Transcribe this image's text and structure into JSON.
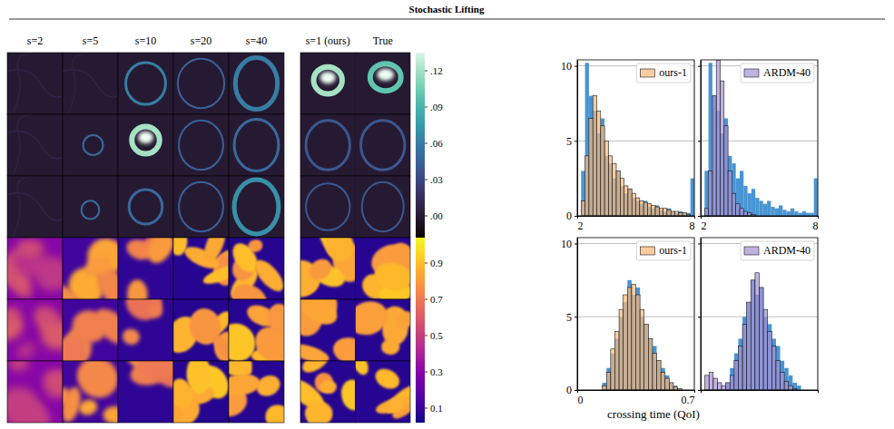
{
  "header": {
    "title": "Stochastic Lifting"
  },
  "image_grid": {
    "column_labels": [
      "s=2",
      "s=5",
      "s=10",
      "s=20",
      "s=40"
    ],
    "compare_labels": [
      "s=1 (ours)",
      "True"
    ],
    "colorbars": [
      {
        "range": [
          -0.018,
          0.135
        ],
        "ticks": [
          {
            "value": 0,
            "label": ".00"
          },
          {
            "value": 0.03,
            "label": ".03"
          },
          {
            "value": 0.06,
            "label": ".06"
          },
          {
            "value": 0.09,
            "label": ".09"
          },
          {
            "value": 0.12,
            "label": ".12"
          }
        ]
      },
      {
        "range": [
          0.02,
          1.04
        ],
        "ticks": [
          0.1,
          0.3,
          0.5,
          0.7,
          0.9
        ]
      }
    ]
  },
  "chart_data": [
    {
      "type": "histogram",
      "bins": [
        2,
        2.2,
        2.4,
        2.6,
        2.8,
        3,
        3.2,
        3.4,
        3.6,
        3.8,
        4,
        4.2,
        4.4,
        4.6,
        4.8,
        5,
        5.2,
        5.4,
        5.6,
        5.8,
        6,
        6.2,
        6.4,
        6.6,
        6.8,
        7,
        7.2,
        7.4,
        7.6,
        7.8,
        8
      ],
      "series": [
        {
          "color": "#3f8fd2",
          "values": [
            0,
            3,
            10.2,
            8,
            7,
            5.5,
            6.5,
            4,
            3.5,
            2.5,
            3,
            2,
            1.5,
            1.8,
            1.2,
            1,
            0.8,
            1,
            0.6,
            0.5,
            0.7,
            0.4,
            0.3,
            0.5,
            0.3,
            0.2,
            0.3,
            0.2,
            0.2,
            2.5
          ]
        },
        {
          "name": "ours-1",
          "color": "#f9b97c",
          "values": [
            0,
            1,
            4,
            6.5,
            8,
            7,
            6,
            5,
            4,
            3.5,
            3,
            2.5,
            2,
            1.8,
            1.5,
            1.2,
            1,
            0.9,
            0.8,
            0.7,
            0.6,
            0.5,
            0.5,
            0.4,
            0.3,
            0.3,
            0.2,
            0.2,
            0.1,
            0
          ]
        }
      ],
      "xlim": [
        2,
        8
      ],
      "ylim": [
        0,
        10.4
      ],
      "xticks": [
        2,
        8
      ],
      "yticks": [
        0,
        5,
        10
      ],
      "grid": true,
      "legend": "upper right"
    },
    {
      "type": "histogram",
      "bins": [
        2,
        2.2,
        2.4,
        2.6,
        2.8,
        3,
        3.2,
        3.4,
        3.6,
        3.8,
        4,
        4.2,
        4.4,
        4.6,
        4.8,
        5,
        5.2,
        5.4,
        5.6,
        5.8,
        6,
        6.2,
        6.4,
        6.6,
        6.8,
        7,
        7.2,
        7.4,
        7.6,
        7.8,
        8
      ],
      "series": [
        {
          "color": "#3f8fd2",
          "values": [
            0,
            3,
            10.2,
            8,
            7,
            5.5,
            6.5,
            4,
            3.5,
            2.5,
            3,
            2,
            1.5,
            1.8,
            1.2,
            1,
            0.8,
            1,
            0.6,
            0.5,
            0.7,
            0.4,
            0.3,
            0.5,
            0.3,
            0.2,
            0.3,
            0.2,
            0.2,
            2.5
          ]
        },
        {
          "name": "ARDM-40",
          "color": "#a893d6",
          "values": [
            0,
            0.5,
            3,
            8,
            10.4,
            9,
            6,
            3,
            1.5,
            0.8,
            0.5,
            0.3,
            0.2,
            0.1,
            0,
            0,
            0,
            0,
            0,
            0,
            0,
            0,
            0,
            0,
            0,
            0,
            0,
            0,
            0,
            0
          ]
        }
      ],
      "xlim": [
        2,
        8
      ],
      "ylim": [
        0,
        10.4
      ],
      "xticks": [
        2,
        8
      ],
      "yticks": [
        0,
        5,
        10
      ],
      "grid": true,
      "legend": "upper right",
      "tick_labels": "x"
    },
    {
      "type": "histogram",
      "bins": [
        0,
        0.025,
        0.05,
        0.075,
        0.1,
        0.125,
        0.15,
        0.175,
        0.2,
        0.225,
        0.25,
        0.275,
        0.3,
        0.325,
        0.35,
        0.375,
        0.4,
        0.425,
        0.45,
        0.475,
        0.5,
        0.525,
        0.55,
        0.575,
        0.6,
        0.625,
        0.65,
        0.675,
        0.7
      ],
      "series": [
        {
          "color": "#3f8fd2",
          "values": [
            0,
            0,
            0,
            0,
            0,
            0,
            0.5,
            1.5,
            2.5,
            3.5,
            5,
            6,
            7.5,
            6.5,
            7,
            5,
            4.5,
            3.5,
            3,
            2,
            1.5,
            1,
            0.5,
            0.3,
            0,
            0,
            0,
            0
          ]
        },
        {
          "name": "ours-1",
          "color": "#f9b97c",
          "values": [
            0,
            0,
            0,
            0,
            0,
            0,
            0.3,
            1.2,
            2.8,
            4,
            5.5,
            6.5,
            7,
            7.2,
            6.5,
            5.5,
            4.5,
            3.5,
            2.5,
            2,
            1.2,
            0.8,
            0.5,
            0.2,
            0.1,
            0,
            0,
            0
          ]
        }
      ],
      "xlim": [
        0,
        0.7
      ],
      "ylim": [
        0,
        10.4
      ],
      "xticks": [
        0,
        0.7
      ],
      "yticks": [
        0,
        5,
        10
      ],
      "grid": true,
      "legend": "upper right",
      "xlabel": "crossing time (QoI)"
    },
    {
      "type": "histogram",
      "bins": [
        0,
        0.025,
        0.05,
        0.075,
        0.1,
        0.125,
        0.15,
        0.175,
        0.2,
        0.225,
        0.25,
        0.275,
        0.3,
        0.325,
        0.35,
        0.375,
        0.4,
        0.425,
        0.45,
        0.475,
        0.5,
        0.525,
        0.55,
        0.575,
        0.6,
        0.625,
        0.65,
        0.675,
        0.7
      ],
      "series": [
        {
          "color": "#3f8fd2",
          "values": [
            0,
            0,
            0,
            0,
            0,
            0,
            0.5,
            1.5,
            2.5,
            3.5,
            5,
            6,
            7.5,
            6.5,
            7,
            5,
            4.5,
            3.5,
            3,
            2,
            1.5,
            1,
            0.5,
            0.3,
            0,
            0,
            0,
            0
          ]
        },
        {
          "name": "ARDM-40",
          "color": "#a893d6",
          "values": [
            0,
            1,
            1.2,
            0.8,
            0.5,
            0.3,
            0.5,
            1,
            2,
            3,
            4.5,
            6,
            7.5,
            8,
            7,
            5.5,
            4,
            3,
            2,
            1.2,
            0.6,
            0.3,
            0.1,
            0,
            0,
            0,
            0,
            0
          ]
        }
      ],
      "xlim": [
        0,
        0.7
      ],
      "ylim": [
        0,
        10.4
      ],
      "xticks": [
        0,
        0.7
      ],
      "yticks": [
        0,
        5,
        10
      ],
      "grid": true,
      "legend": "upper right",
      "tick_labels": false
    }
  ]
}
